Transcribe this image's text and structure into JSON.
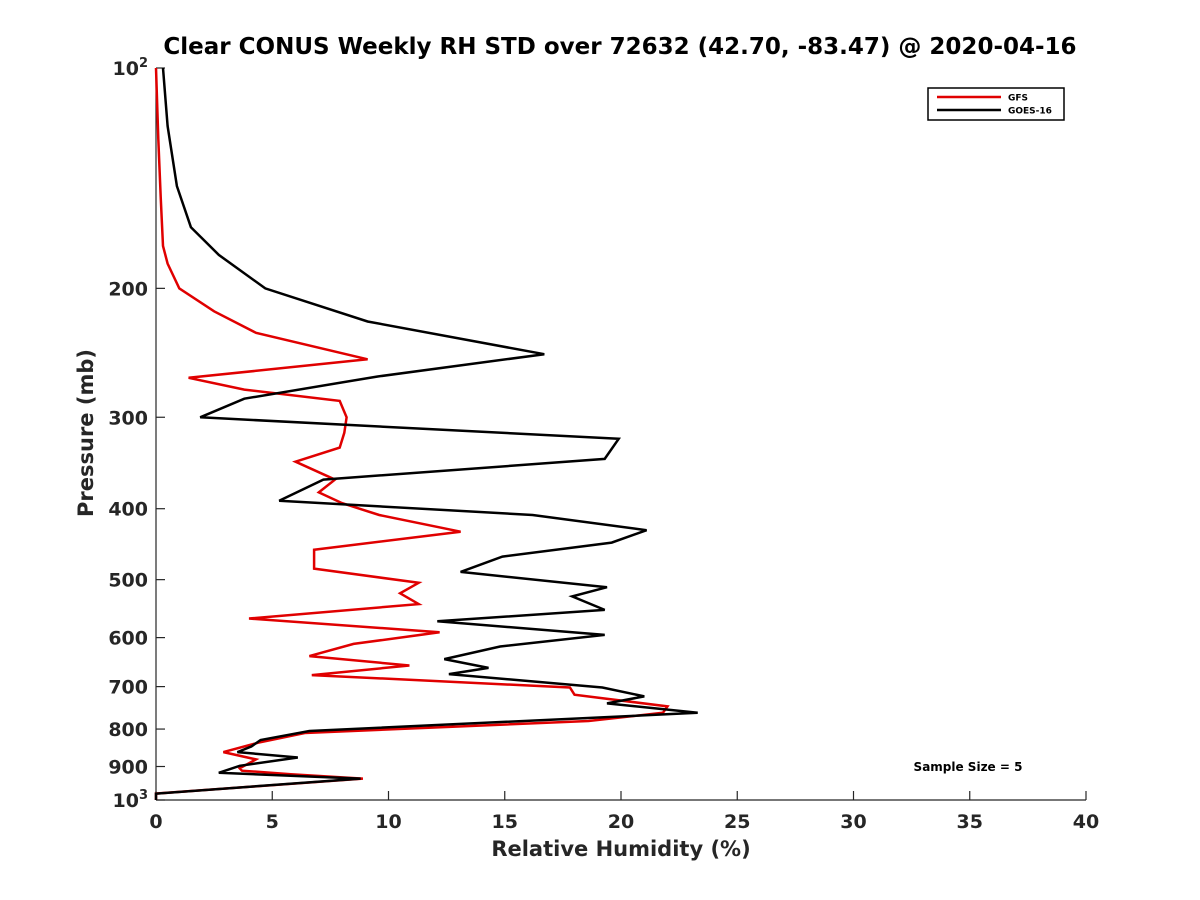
{
  "chart_data": {
    "type": "line",
    "title": "Clear CONUS Weekly RH STD over 72632 (42.70, -83.47) @ 2020-04-16",
    "xlabel": "Relative Humidity (%)",
    "ylabel": "Pressure (mb)",
    "xlim": [
      0,
      40
    ],
    "ylim": [
      100,
      1000
    ],
    "y_scale": "log",
    "y_reversed": true,
    "grid": false,
    "legend_position": "top-right",
    "x_ticks": [
      "0",
      "5",
      "10",
      "15",
      "20",
      "25",
      "30",
      "35",
      "40"
    ],
    "y_ticks": [
      {
        "value": 100,
        "base": "10",
        "exp": "2"
      },
      {
        "value": 200,
        "label": "200"
      },
      {
        "value": 300,
        "label": "300"
      },
      {
        "value": 400,
        "label": "400"
      },
      {
        "value": 500,
        "label": "500"
      },
      {
        "value": 600,
        "label": "600"
      },
      {
        "value": 700,
        "label": "700"
      },
      {
        "value": 800,
        "label": "800"
      },
      {
        "value": 900,
        "label": "900"
      },
      {
        "value": 1000,
        "base": "10",
        "exp": "3"
      }
    ],
    "annotation": "Sample Size = 5",
    "series": [
      {
        "name": "GFS",
        "color": "#e00000",
        "points": [
          [
            0.0,
            100
          ],
          [
            0.1,
            125
          ],
          [
            0.2,
            150
          ],
          [
            0.3,
            175
          ],
          [
            0.5,
            185
          ],
          [
            1.0,
            200
          ],
          [
            2.5,
            215
          ],
          [
            4.3,
            230
          ],
          [
            9.1,
            250
          ],
          [
            1.4,
            265
          ],
          [
            3.8,
            275
          ],
          [
            7.9,
            285
          ],
          [
            8.2,
            300
          ],
          [
            8.1,
            315
          ],
          [
            7.9,
            330
          ],
          [
            6.0,
            345
          ],
          [
            7.7,
            365
          ],
          [
            7.0,
            380
          ],
          [
            8.0,
            393
          ],
          [
            9.6,
            408
          ],
          [
            13.1,
            430
          ],
          [
            6.8,
            455
          ],
          [
            6.8,
            483
          ],
          [
            11.3,
            505
          ],
          [
            10.5,
            522
          ],
          [
            11.3,
            540
          ],
          [
            4.0,
            565
          ],
          [
            12.2,
            590
          ],
          [
            8.5,
            612
          ],
          [
            6.6,
            636
          ],
          [
            10.9,
            655
          ],
          [
            6.7,
            675
          ],
          [
            17.8,
            702
          ],
          [
            18.0,
            718
          ],
          [
            22.0,
            745
          ],
          [
            21.8,
            760
          ],
          [
            18.6,
            780
          ],
          [
            6.4,
            810
          ],
          [
            4.4,
            835
          ],
          [
            2.9,
            860
          ],
          [
            4.3,
            880
          ],
          [
            3.6,
            905
          ],
          [
            3.7,
            912
          ],
          [
            5.8,
            922
          ],
          [
            8.9,
            935
          ],
          [
            0.0,
            980
          ],
          [
            0.0,
            1000
          ]
        ]
      },
      {
        "name": "GOES-16",
        "color": "#000000",
        "points": [
          [
            0.3,
            100
          ],
          [
            0.5,
            120
          ],
          [
            0.9,
            145
          ],
          [
            1.5,
            165
          ],
          [
            2.7,
            180
          ],
          [
            4.7,
            200
          ],
          [
            9.1,
            222
          ],
          [
            16.7,
            246
          ],
          [
            9.5,
            264
          ],
          [
            3.8,
            283
          ],
          [
            1.9,
            300
          ],
          [
            19.9,
            321
          ],
          [
            19.3,
            342
          ],
          [
            7.2,
            365
          ],
          [
            5.3,
            390
          ],
          [
            16.2,
            408
          ],
          [
            21.1,
            428
          ],
          [
            19.6,
            445
          ],
          [
            14.9,
            465
          ],
          [
            13.1,
            488
          ],
          [
            19.4,
            512
          ],
          [
            17.9,
            527
          ],
          [
            19.3,
            550
          ],
          [
            12.1,
            570
          ],
          [
            19.3,
            595
          ],
          [
            14.8,
            617
          ],
          [
            12.4,
            642
          ],
          [
            14.3,
            660
          ],
          [
            12.6,
            673
          ],
          [
            19.2,
            702
          ],
          [
            21.0,
            722
          ],
          [
            19.4,
            738
          ],
          [
            23.3,
            760
          ],
          [
            6.6,
            805
          ],
          [
            4.5,
            828
          ],
          [
            4.1,
            845
          ],
          [
            3.5,
            860
          ],
          [
            6.1,
            875
          ],
          [
            3.6,
            898
          ],
          [
            2.7,
            918
          ],
          [
            8.8,
            935
          ],
          [
            0.0,
            980
          ],
          [
            0.0,
            1000
          ]
        ]
      }
    ]
  }
}
